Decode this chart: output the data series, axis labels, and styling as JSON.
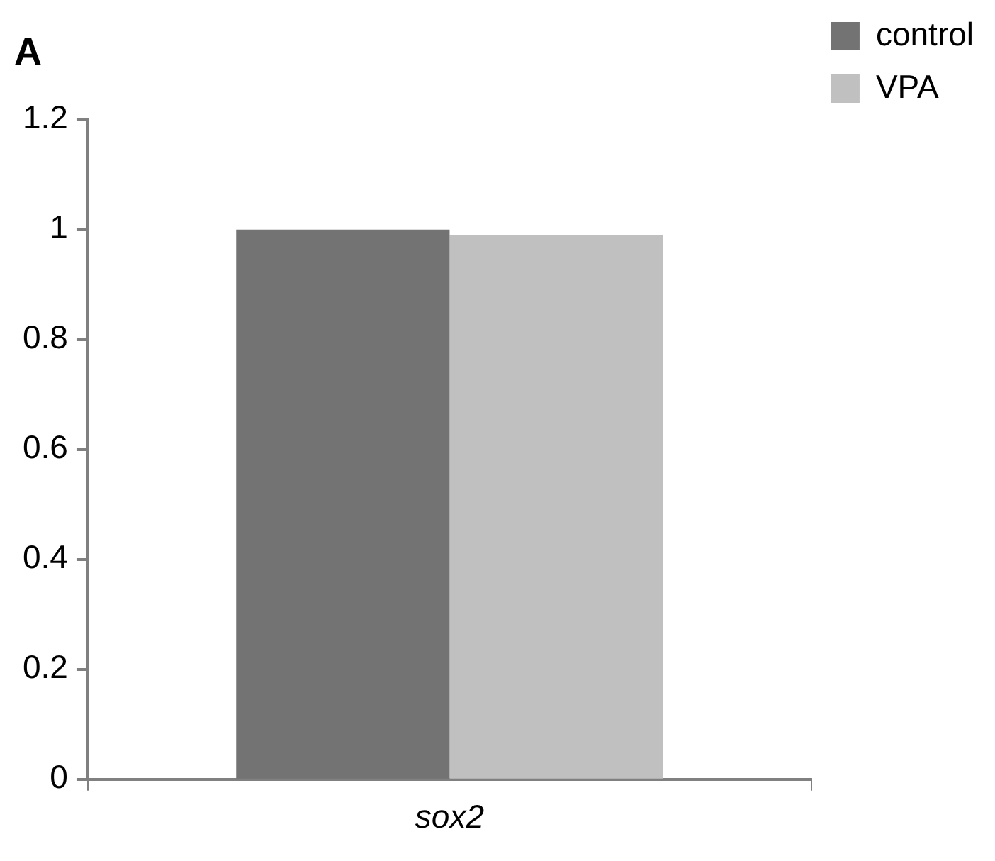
{
  "chart_data": {
    "type": "bar",
    "title": "A",
    "categories": [
      "sox2"
    ],
    "series": [
      {
        "name": "control",
        "color": "#737373",
        "values": [
          1.0
        ]
      },
      {
        "name": "VPA",
        "color": "#c0c0c0",
        "values": [
          0.99
        ]
      }
    ],
    "ylim": [
      0,
      1.2
    ],
    "yticks": [
      0,
      0.2,
      0.4,
      0.6,
      0.8,
      1,
      1.2
    ],
    "grid": false,
    "legend": "top right"
  }
}
